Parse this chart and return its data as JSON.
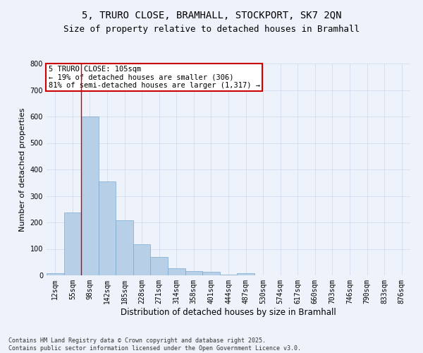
{
  "title_line1": "5, TRURO CLOSE, BRAMHALL, STOCKPORT, SK7 2QN",
  "title_line2": "Size of property relative to detached houses in Bramhall",
  "xlabel": "Distribution of detached houses by size in Bramhall",
  "ylabel": "Number of detached properties",
  "bar_color": "#b8cfe8",
  "bar_edge_color": "#7aaad0",
  "categories": [
    "12sqm",
    "55sqm",
    "98sqm",
    "142sqm",
    "185sqm",
    "228sqm",
    "271sqm",
    "314sqm",
    "358sqm",
    "401sqm",
    "444sqm",
    "487sqm",
    "530sqm",
    "574sqm",
    "617sqm",
    "660sqm",
    "703sqm",
    "746sqm",
    "790sqm",
    "833sqm",
    "876sqm"
  ],
  "values": [
    7,
    238,
    600,
    355,
    207,
    117,
    70,
    28,
    17,
    13,
    4,
    7,
    0,
    0,
    0,
    0,
    0,
    0,
    0,
    0,
    0
  ],
  "vline_x": 2,
  "vline_color": "#cc0000",
  "annotation_text": "5 TRURO CLOSE: 105sqm\n← 19% of detached houses are smaller (306)\n81% of semi-detached houses are larger (1,317) →",
  "annotation_box_color": "#ffffff",
  "annotation_box_edge_color": "#cc0000",
  "footer_line1": "Contains HM Land Registry data © Crown copyright and database right 2025.",
  "footer_line2": "Contains public sector information licensed under the Open Government Licence v3.0.",
  "bg_color": "#eef2fa",
  "ylim": [
    0,
    800
  ],
  "yticks": [
    0,
    100,
    200,
    300,
    400,
    500,
    600,
    700,
    800
  ],
  "title_fontsize": 10,
  "subtitle_fontsize": 9,
  "xlabel_fontsize": 8.5,
  "ylabel_fontsize": 8,
  "tick_fontsize": 7,
  "annotation_fontsize": 7.5,
  "footer_fontsize": 6,
  "grid_color": "#d0d8ee"
}
